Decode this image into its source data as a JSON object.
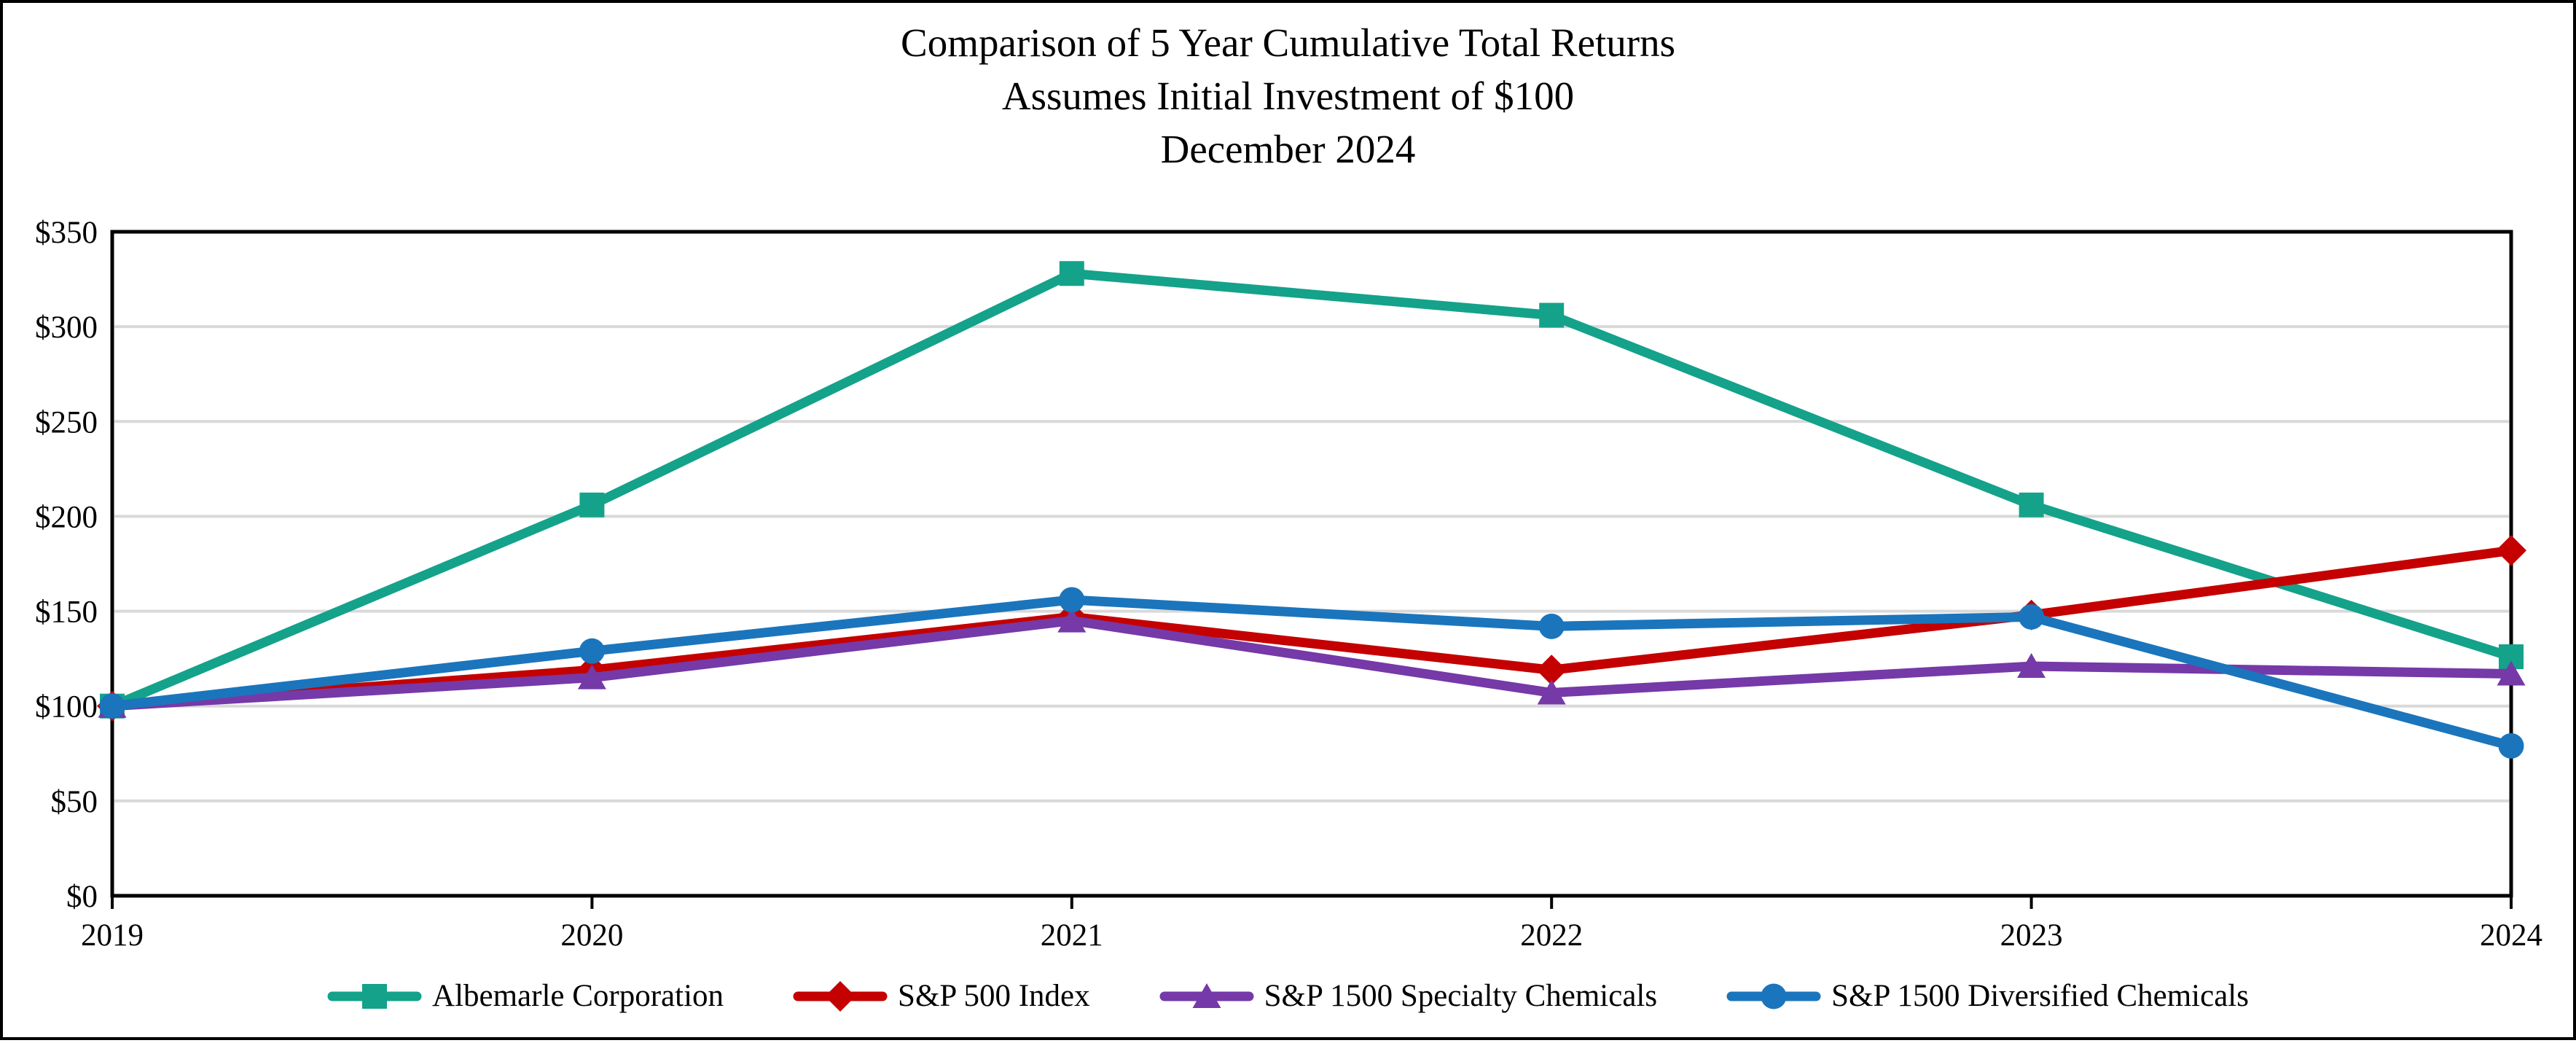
{
  "chart_data": {
    "type": "line",
    "title": "Comparison of 5 Year Cumulative Total Returns",
    "subtitle": "Assumes Initial Investment of $100",
    "period_label": "December 2024",
    "categories": [
      "2019",
      "2020",
      "2021",
      "2022",
      "2023",
      "2024"
    ],
    "series": [
      {
        "name": "Albemarle Corporation",
        "color": "#14A28A",
        "marker": "square",
        "values": [
          100,
          206,
          328,
          306,
          206,
          126
        ]
      },
      {
        "name": "S&P 500 Index",
        "color": "#C40000",
        "marker": "diamond",
        "values": [
          100,
          119,
          147,
          119,
          148,
          182
        ]
      },
      {
        "name": "S&P 1500 Specialty Chemicals",
        "color": "#7639A8",
        "marker": "triangle",
        "values": [
          100,
          115,
          145,
          107,
          121,
          117
        ]
      },
      {
        "name": "S&P 1500 Diversified Chemicals",
        "color": "#1B75BC",
        "marker": "circle",
        "values": [
          100,
          129,
          156,
          142,
          147,
          79
        ]
      }
    ],
    "ylim": [
      0,
      350
    ],
    "ytick_step": 50,
    "ytick_labels": [
      "$0",
      "$50",
      "$100",
      "$150",
      "$200",
      "$250",
      "$300",
      "$350"
    ],
    "xlabel": "",
    "ylabel": "",
    "grid": "horizontal",
    "gridline_color": "#D9D9D9",
    "axis_color": "#000000",
    "background_color": "#FFFFFF",
    "legend_position": "bottom"
  }
}
